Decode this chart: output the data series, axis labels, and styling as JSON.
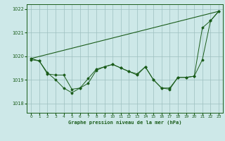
{
  "xlabel": "Graphe pression niveau de la mer (hPa)",
  "bg_color": "#cde8e8",
  "grid_color": "#9dbfbf",
  "line_color": "#1a5c1a",
  "xlim": [
    -0.5,
    23.5
  ],
  "ylim": [
    1017.6,
    1022.2
  ],
  "yticks": [
    1018,
    1019,
    1020,
    1021,
    1022
  ],
  "xticks": [
    0,
    1,
    2,
    3,
    4,
    5,
    6,
    7,
    8,
    9,
    10,
    11,
    12,
    13,
    14,
    15,
    16,
    17,
    18,
    19,
    20,
    21,
    22,
    23
  ],
  "series_detailed_x": [
    0,
    1,
    2,
    3,
    4,
    5,
    6,
    7,
    8,
    9,
    10,
    11,
    12,
    13,
    14,
    15,
    16,
    17,
    18,
    19,
    20,
    21,
    22,
    23
  ],
  "series_detailed_y": [
    1019.9,
    1019.8,
    1019.3,
    1019.0,
    1018.65,
    1018.45,
    1018.65,
    1018.85,
    1019.4,
    1019.55,
    1019.65,
    1019.5,
    1019.35,
    1019.2,
    1019.55,
    1019.0,
    1018.65,
    1018.6,
    1019.1,
    1019.1,
    1019.15,
    1021.2,
    1021.5,
    1021.9
  ],
  "series_trend_x": [
    0,
    23
  ],
  "series_trend_y": [
    1019.9,
    1021.9
  ],
  "series_smooth_x": [
    0,
    1,
    2,
    3,
    4,
    5,
    6,
    7,
    8,
    9,
    10,
    11,
    12,
    13,
    14,
    15,
    16,
    17,
    18,
    19,
    20,
    21,
    22,
    23
  ],
  "series_smooth_y": [
    1019.85,
    1019.8,
    1019.25,
    1019.2,
    1019.2,
    1018.6,
    1018.65,
    1019.05,
    1019.45,
    1019.55,
    1019.65,
    1019.5,
    1019.35,
    1019.25,
    1019.55,
    1019.0,
    1018.65,
    1018.65,
    1019.1,
    1019.1,
    1019.15,
    1019.85,
    1021.5,
    1021.9
  ]
}
